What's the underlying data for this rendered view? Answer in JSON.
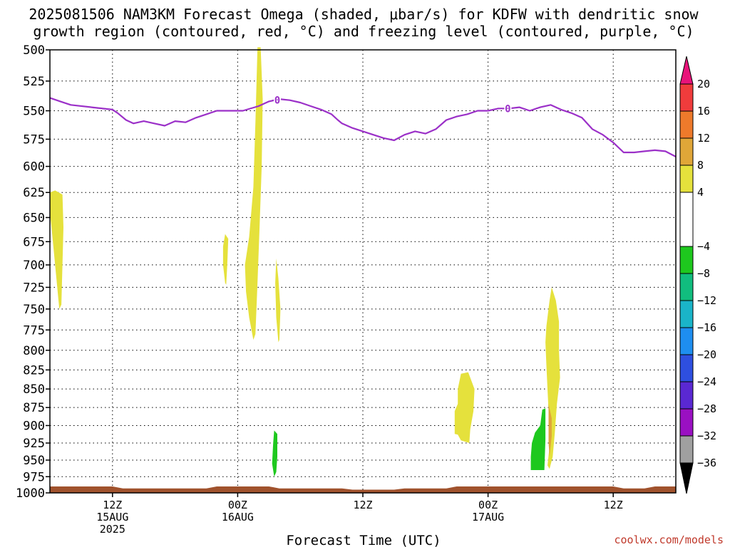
{
  "title_line1": "2025081506 NAM3KM Forecast Omega (shaded, μbar/s) for KDFW with dendritic snow",
  "title_line2": "growth region (contoured, red, °C) and freezing level (contoured, purple, °C)",
  "credit": "coolwx.com/models",
  "chart_data": {
    "type": "heatmap",
    "title": "2025081506 NAM3KM Forecast Omega (shaded, μbar/s) for KDFW with dendritic snow growth region (contoured, red, °C) and freezing level (contoured, purple, °C)",
    "xlabel": "Forecast Time (UTC)",
    "ylabel": "",
    "x_unit": "forecast hour from 2025-08-15 06Z",
    "xlim": [
      0,
      60
    ],
    "y_scale": "log-pressure",
    "ylim": [
      1000,
      500
    ],
    "grid": true,
    "yticks": [
      500,
      525,
      550,
      575,
      600,
      625,
      650,
      675,
      700,
      725,
      750,
      775,
      800,
      825,
      850,
      875,
      900,
      925,
      950,
      975,
      1000
    ],
    "xticks": [
      {
        "x": 6,
        "lines": [
          "12Z",
          "15AUG",
          "2025"
        ]
      },
      {
        "x": 18,
        "lines": [
          "00Z",
          "16AUG"
        ]
      },
      {
        "x": 30,
        "lines": [
          "12Z"
        ]
      },
      {
        "x": 42,
        "lines": [
          "00Z",
          "17AUG"
        ]
      },
      {
        "x": 54,
        "lines": [
          "12Z"
        ]
      }
    ],
    "freezing_level": {
      "label": "0",
      "color": "#9b30c8",
      "label_at": [
        {
          "x": 21.8,
          "p": 541
        },
        {
          "x": 43.9,
          "p": 548
        }
      ],
      "points": [
        [
          0,
          539
        ],
        [
          1,
          542
        ],
        [
          2,
          545
        ],
        [
          4,
          547
        ],
        [
          6,
          549
        ],
        [
          6.5,
          552
        ],
        [
          7.3,
          558
        ],
        [
          8,
          561
        ],
        [
          9,
          559
        ],
        [
          10,
          561
        ],
        [
          11,
          563
        ],
        [
          12,
          559
        ],
        [
          13,
          560
        ],
        [
          14,
          556
        ],
        [
          15,
          553
        ],
        [
          16,
          550
        ],
        [
          17,
          550
        ],
        [
          18.5,
          550
        ],
        [
          20,
          546
        ],
        [
          21,
          542
        ],
        [
          22,
          540
        ],
        [
          23,
          541
        ],
        [
          24,
          543
        ],
        [
          25,
          546
        ],
        [
          26,
          549
        ],
        [
          27,
          553
        ],
        [
          27.6,
          558
        ],
        [
          28,
          561
        ],
        [
          29,
          565
        ],
        [
          30,
          568
        ],
        [
          31,
          571
        ],
        [
          32,
          574
        ],
        [
          33,
          576
        ],
        [
          34,
          571
        ],
        [
          35,
          568
        ],
        [
          36,
          570
        ],
        [
          37,
          566
        ],
        [
          38,
          558
        ],
        [
          39,
          555
        ],
        [
          40,
          553
        ],
        [
          41,
          550
        ],
        [
          42,
          550
        ],
        [
          43,
          548
        ],
        [
          44,
          548
        ],
        [
          45,
          547
        ],
        [
          46,
          550
        ],
        [
          47,
          547
        ],
        [
          48,
          545
        ],
        [
          49,
          549
        ],
        [
          50,
          552
        ],
        [
          51,
          556
        ],
        [
          52,
          566
        ],
        [
          53,
          571
        ],
        [
          54,
          578
        ],
        [
          55,
          587
        ],
        [
          56,
          587
        ],
        [
          57,
          586
        ],
        [
          58,
          585
        ],
        [
          59,
          586
        ],
        [
          60,
          591
        ]
      ]
    },
    "omega_areas": [
      {
        "band": "4 to 8",
        "color": "#e5e13c",
        "points": [
          [
            0,
            625
          ],
          [
            0.5,
            623
          ],
          [
            1.2,
            627
          ],
          [
            1.3,
            660
          ],
          [
            1.2,
            700
          ],
          [
            1.1,
            745
          ],
          [
            0.9,
            750
          ],
          [
            0.5,
            700
          ],
          [
            0.2,
            665
          ],
          [
            0,
            645
          ]
        ]
      },
      {
        "band": "4 to 8",
        "color": "#e5e13c",
        "points": [
          [
            16.8,
            667
          ],
          [
            17.1,
            672
          ],
          [
            17,
            700
          ],
          [
            16.9,
            722
          ],
          [
            16.8,
            720
          ],
          [
            16.6,
            700
          ],
          [
            16.6,
            680
          ]
        ]
      },
      {
        "band": "4 to 8",
        "color": "#e5e13c",
        "points": [
          [
            19.9,
            498
          ],
          [
            20.2,
            498
          ],
          [
            20.4,
            540
          ],
          [
            20.3,
            600
          ],
          [
            20.1,
            660
          ],
          [
            19.9,
            720
          ],
          [
            19.7,
            780
          ],
          [
            19.5,
            787
          ],
          [
            19.1,
            760
          ],
          [
            18.8,
            730
          ],
          [
            18.7,
            700
          ],
          [
            19.1,
            670
          ],
          [
            19.5,
            620
          ],
          [
            19.7,
            560
          ]
        ]
      },
      {
        "band": "4 to 8",
        "color": "#e5e13c",
        "points": [
          [
            21.7,
            693
          ],
          [
            21.9,
            715
          ],
          [
            22.1,
            750
          ],
          [
            22,
            787
          ],
          [
            21.9,
            790
          ],
          [
            21.7,
            760
          ],
          [
            21.6,
            720
          ]
        ]
      },
      {
        "band": "4 to 8",
        "color": "#e5e13c",
        "points": [
          [
            39.4,
            830
          ],
          [
            40.1,
            828
          ],
          [
            40.7,
            850
          ],
          [
            40.6,
            880
          ],
          [
            40.3,
            905
          ],
          [
            40.2,
            925
          ],
          [
            39.4,
            921
          ],
          [
            39.1,
            913
          ],
          [
            38.8,
            912
          ],
          [
            38.8,
            880
          ],
          [
            39.1,
            870
          ],
          [
            39.1,
            850
          ]
        ]
      },
      {
        "band": "4 to 8",
        "color": "#e5e13c",
        "points": [
          [
            48.1,
            725
          ],
          [
            48.5,
            740
          ],
          [
            48.8,
            765
          ],
          [
            48.8,
            800
          ],
          [
            48.9,
            835
          ],
          [
            48.6,
            870
          ],
          [
            48.4,
            910
          ],
          [
            48.2,
            945
          ],
          [
            47.9,
            963
          ],
          [
            47.7,
            958
          ],
          [
            47.9,
            930
          ],
          [
            47.8,
            900
          ],
          [
            47.8,
            880
          ],
          [
            47.7,
            850
          ],
          [
            47.6,
            820
          ],
          [
            47.5,
            790
          ],
          [
            47.6,
            770
          ],
          [
            47.9,
            740
          ]
        ]
      },
      {
        "band": "8 to 12",
        "color": "#e0a638",
        "points": [
          [
            47.8,
            870
          ],
          [
            48.1,
            890
          ],
          [
            48.1,
            915
          ],
          [
            47.9,
            945
          ],
          [
            47.8,
            925
          ],
          [
            47.8,
            895
          ]
        ]
      },
      {
        "band": "-8 to -4",
        "color": "#1ec81e",
        "points": [
          [
            21.5,
            907
          ],
          [
            21.8,
            912
          ],
          [
            21.8,
            945
          ],
          [
            21.7,
            968
          ],
          [
            21.5,
            975
          ],
          [
            21.3,
            955
          ],
          [
            21.4,
            925
          ]
        ]
      },
      {
        "band": "-8 to -4",
        "color": "#1ec81e",
        "points": [
          [
            47.2,
            878
          ],
          [
            47.5,
            876
          ],
          [
            47.5,
            920
          ],
          [
            47.4,
            965
          ],
          [
            46.1,
            965
          ],
          [
            46.1,
            945
          ],
          [
            46.2,
            925
          ],
          [
            46.5,
            910
          ],
          [
            47,
            900
          ]
        ]
      }
    ],
    "terrain": {
      "color": "#a0522d",
      "top_p": [
        [
          0,
          990
        ],
        [
          6,
          990
        ],
        [
          7,
          993
        ],
        [
          15,
          993
        ],
        [
          16,
          990
        ],
        [
          21,
          990
        ],
        [
          22,
          993
        ],
        [
          28,
          993
        ],
        [
          29,
          995
        ],
        [
          33,
          995
        ],
        [
          34,
          993
        ],
        [
          38,
          993
        ],
        [
          39,
          990
        ],
        [
          54,
          990
        ],
        [
          55,
          993
        ],
        [
          57,
          993
        ],
        [
          58,
          990
        ],
        [
          60,
          990
        ]
      ]
    },
    "colorbar": {
      "label_values": [
        20,
        16,
        12,
        8,
        4,
        -4,
        -8,
        -12,
        -16,
        -20,
        -24,
        -28,
        -32,
        -36
      ],
      "bands": [
        {
          "from": 20,
          "to": 24,
          "color": "#e8137a"
        },
        {
          "from": 16,
          "to": 20,
          "color": "#f03c3c"
        },
        {
          "from": 12,
          "to": 16,
          "color": "#ee7a2b"
        },
        {
          "from": 8,
          "to": 12,
          "color": "#e0a638"
        },
        {
          "from": 4,
          "to": 8,
          "color": "#e5e13c"
        },
        {
          "from": -4,
          "to": 4,
          "color": "#ffffff"
        },
        {
          "from": -8,
          "to": -4,
          "color": "#1ec81e"
        },
        {
          "from": -12,
          "to": -8,
          "color": "#11bd7e"
        },
        {
          "from": -16,
          "to": -12,
          "color": "#1ab4c8"
        },
        {
          "from": -20,
          "to": -16,
          "color": "#1e8ef0"
        },
        {
          "from": -24,
          "to": -20,
          "color": "#2e4fe0"
        },
        {
          "from": -28,
          "to": -24,
          "color": "#5a28d2"
        },
        {
          "from": -32,
          "to": -28,
          "color": "#9a10c2"
        },
        {
          "from": -36,
          "to": -32,
          "color": "#a0a0a0"
        },
        {
          "from": -40,
          "to": -36,
          "color": "#000000"
        }
      ]
    }
  }
}
